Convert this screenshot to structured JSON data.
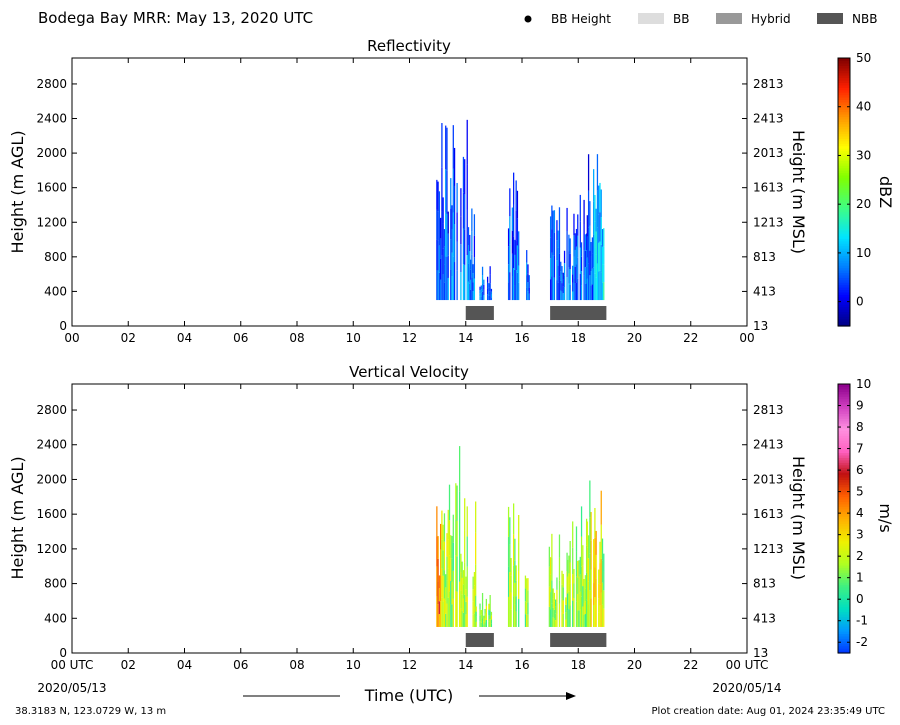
{
  "header": {
    "title": "Bodega Bay MRR:  May 13, 2020 UTC",
    "legend": [
      {
        "label": "BB Height",
        "kind": "dot",
        "color": "#000000"
      },
      {
        "label": "BB",
        "kind": "box",
        "color": "#dddddd"
      },
      {
        "label": "Hybrid",
        "kind": "box",
        "color": "#999999"
      },
      {
        "label": "NBB",
        "kind": "box",
        "color": "#555555"
      }
    ]
  },
  "chart_data": [
    {
      "type": "heatmap",
      "title": "Reflectivity",
      "ylabel": "Height (m AGL)",
      "ylabel_right": "Height (m MSL)",
      "x_ticks": [
        "00",
        "02",
        "04",
        "06",
        "08",
        "10",
        "12",
        "14",
        "16",
        "18",
        "20",
        "22",
        "00"
      ],
      "xlim": [
        0,
        24
      ],
      "y_ticks": [
        0,
        400,
        800,
        1200,
        1600,
        2000,
        2400,
        2800
      ],
      "y_ticks_right": [
        "13",
        "413",
        "813",
        "1213",
        "1613",
        "2013",
        "2413",
        "2813"
      ],
      "ylim": [
        0,
        3100
      ],
      "colorbar": {
        "label": "dBZ",
        "min": -5,
        "max": 50,
        "ticks": [
          0,
          10,
          20,
          30,
          40,
          50
        ],
        "colors": [
          "#00007f",
          "#0000ff",
          "#0080ff",
          "#00e5ff",
          "#40ff80",
          "#80ff00",
          "#ffff00",
          "#ff9900",
          "#ff2000",
          "#7f0000"
        ]
      },
      "echo_columns": [
        {
          "t0": 12.95,
          "t1": 14.15,
          "top": 2400
        },
        {
          "t0": 14.15,
          "t1": 14.35,
          "top": 1800
        },
        {
          "t0": 14.35,
          "t1": 14.9,
          "top": 700
        },
        {
          "t0": 15.5,
          "t1": 15.9,
          "top": 1900
        },
        {
          "t0": 16.1,
          "t1": 16.25,
          "top": 950
        },
        {
          "t0": 16.95,
          "t1": 17.6,
          "top": 1500
        },
        {
          "t0": 17.6,
          "t1": 18.3,
          "top": 1700
        },
        {
          "t0": 18.3,
          "t1": 18.9,
          "top": 2000
        }
      ],
      "nbb_bars": [
        {
          "start": 14.0,
          "end": 15.0
        },
        {
          "start": 17.0,
          "end": 19.0
        }
      ]
    },
    {
      "type": "heatmap",
      "title": "Vertical Velocity",
      "ylabel": "Height (m AGL)",
      "ylabel_right": "Height (m MSL)",
      "x_ticks": [
        "00 UTC",
        "02",
        "04",
        "06",
        "08",
        "10",
        "12",
        "14",
        "16",
        "18",
        "20",
        "22",
        "00 UTC"
      ],
      "xlim": [
        0,
        24
      ],
      "y_ticks": [
        0,
        400,
        800,
        1200,
        1600,
        2000,
        2400,
        2800
      ],
      "y_ticks_right": [
        "13",
        "413",
        "813",
        "1213",
        "1613",
        "2013",
        "2413",
        "2813"
      ],
      "ylim": [
        0,
        3100
      ],
      "colorbar": {
        "label": "m/s",
        "min": -2.5,
        "max": 10,
        "ticks": [
          -2,
          -1,
          0,
          1,
          2,
          3,
          4,
          5,
          6,
          7,
          8,
          9,
          10
        ],
        "colors": [
          "#0033ff",
          "#0099ff",
          "#00e0c0",
          "#40f080",
          "#b0ff20",
          "#f0f000",
          "#ffb000",
          "#ff6000",
          "#c01010",
          "#ff60c0",
          "#ff90e0",
          "#d040c0",
          "#8b008b"
        ]
      },
      "echo_columns": [
        {
          "t0": 12.95,
          "t1": 14.15,
          "top": 2400
        },
        {
          "t0": 14.15,
          "t1": 14.35,
          "top": 1800
        },
        {
          "t0": 14.35,
          "t1": 14.9,
          "top": 700
        },
        {
          "t0": 15.5,
          "t1": 15.9,
          "top": 1900
        },
        {
          "t0": 16.1,
          "t1": 16.25,
          "top": 950
        },
        {
          "t0": 16.95,
          "t1": 17.6,
          "top": 1500
        },
        {
          "t0": 17.6,
          "t1": 18.3,
          "top": 1700
        },
        {
          "t0": 18.3,
          "t1": 18.9,
          "top": 2000
        }
      ],
      "nbb_bars": [
        {
          "start": 14.0,
          "end": 15.0
        },
        {
          "start": 17.0,
          "end": 19.0
        }
      ]
    }
  ],
  "footer": {
    "date_left": "2020/05/13",
    "date_right": "2020/05/14",
    "xlabel": "Time (UTC)",
    "location": "38.3183 N, 123.0729 W, 13 m",
    "created": "Plot creation date: Aug 01, 2024 23:35:49 UTC"
  }
}
